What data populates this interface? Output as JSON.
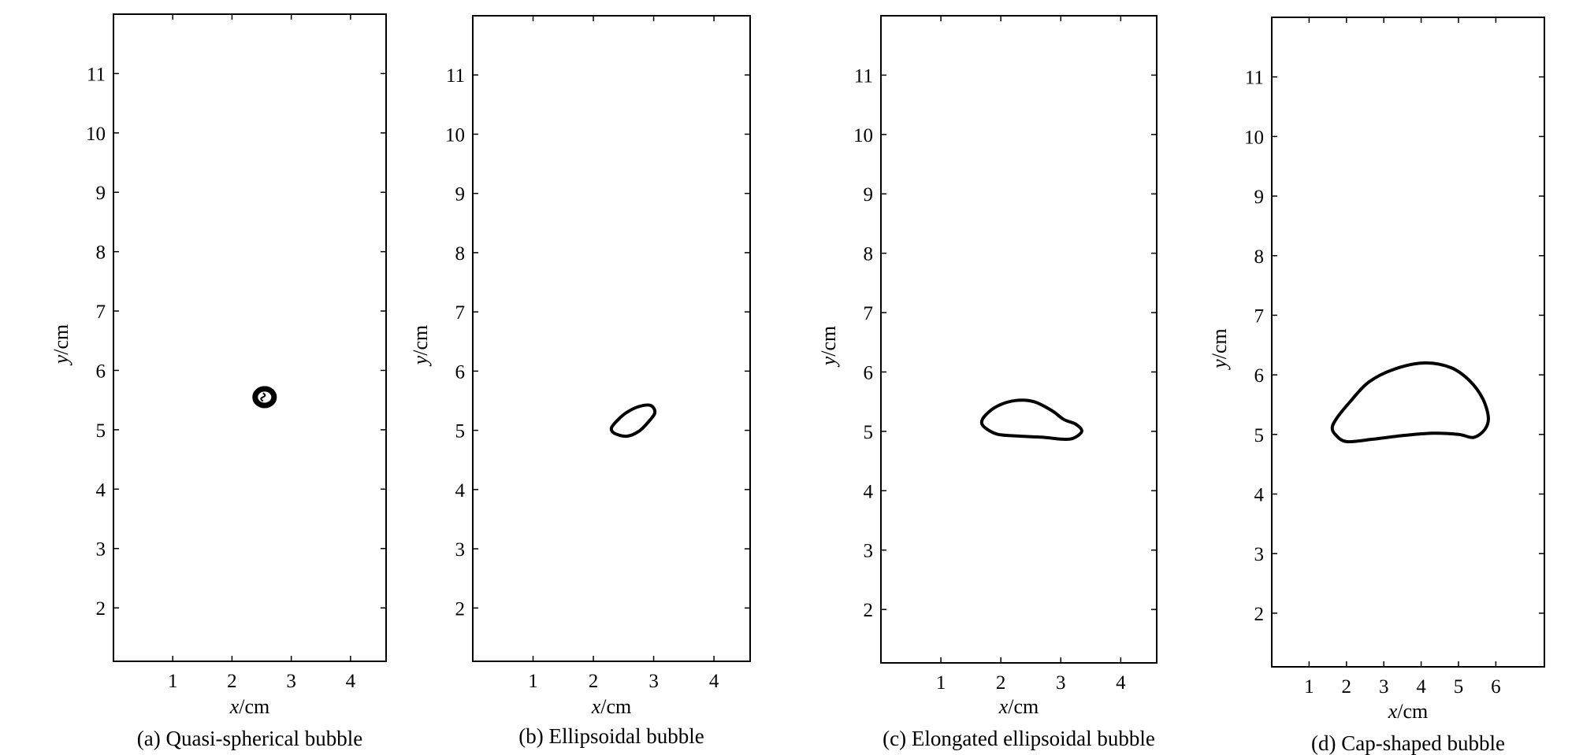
{
  "chart_data": [
    {
      "type": "scatter",
      "caption": "(a) Quasi-spherical bubble",
      "xlabel": "x/cm",
      "ylabel": "y/cm",
      "xlim": [
        0,
        4.6
      ],
      "ylim": [
        1.1,
        12
      ],
      "xticks": [
        1,
        2,
        3,
        4
      ],
      "yticks": [
        2,
        3,
        4,
        5,
        6,
        7,
        8,
        9,
        10,
        11
      ],
      "grid": false,
      "bubble": {
        "shape": "circle",
        "center_x": 2.55,
        "center_y": 5.55,
        "radius_x": 0.16,
        "radius_y": 0.14
      }
    },
    {
      "type": "scatter",
      "caption": "(b) Ellipsoidal bubble",
      "xlabel": "x/cm",
      "ylabel": "y/cm",
      "xlim": [
        0,
        4.6
      ],
      "ylim": [
        1.1,
        12
      ],
      "xticks": [
        1,
        2,
        3,
        4
      ],
      "yticks": [
        2,
        3,
        4,
        5,
        6,
        7,
        8,
        9,
        10,
        11
      ],
      "grid": false,
      "bubble": {
        "shape": "ellipsoidal",
        "outline": [
          [
            2.35,
            4.95
          ],
          [
            2.55,
            4.9
          ],
          [
            2.75,
            4.98
          ],
          [
            2.92,
            5.15
          ],
          [
            3.02,
            5.3
          ],
          [
            2.95,
            5.42
          ],
          [
            2.75,
            5.4
          ],
          [
            2.55,
            5.3
          ],
          [
            2.4,
            5.17
          ],
          [
            2.3,
            5.04
          ]
        ]
      }
    },
    {
      "type": "scatter",
      "caption": "(c) Elongated ellipsoidal bubble",
      "xlabel": "x/cm",
      "ylabel": "y/cm",
      "xlim": [
        0,
        4.6
      ],
      "ylim": [
        1.1,
        12
      ],
      "xticks": [
        1,
        2,
        3,
        4
      ],
      "yticks": [
        2,
        3,
        4,
        5,
        6,
        7,
        8,
        9,
        10,
        11
      ],
      "grid": false,
      "bubble": {
        "shape": "elongated-ellipsoidal",
        "outline": [
          [
            1.75,
            5.05
          ],
          [
            1.95,
            4.95
          ],
          [
            2.3,
            4.92
          ],
          [
            2.7,
            4.9
          ],
          [
            3.0,
            4.87
          ],
          [
            3.2,
            4.88
          ],
          [
            3.35,
            5.0
          ],
          [
            3.25,
            5.12
          ],
          [
            3.05,
            5.2
          ],
          [
            2.85,
            5.35
          ],
          [
            2.55,
            5.5
          ],
          [
            2.25,
            5.52
          ],
          [
            1.95,
            5.43
          ],
          [
            1.75,
            5.28
          ],
          [
            1.68,
            5.15
          ]
        ]
      }
    },
    {
      "type": "scatter",
      "caption": "(d) Cap-shaped bubble",
      "xlabel": "x/cm",
      "ylabel": "y/cm",
      "xlim": [
        0,
        7.3
      ],
      "ylim": [
        1.1,
        12
      ],
      "xticks": [
        1,
        2,
        3,
        4,
        5,
        6
      ],
      "yticks": [
        2,
        3,
        4,
        5,
        6,
        7,
        8,
        9,
        10,
        11
      ],
      "grid": false,
      "bubble": {
        "shape": "cap",
        "outline": [
          [
            1.7,
            5.0
          ],
          [
            2.0,
            4.88
          ],
          [
            2.7,
            4.92
          ],
          [
            3.5,
            4.98
          ],
          [
            4.3,
            5.02
          ],
          [
            5.0,
            5.0
          ],
          [
            5.4,
            4.95
          ],
          [
            5.7,
            5.08
          ],
          [
            5.8,
            5.28
          ],
          [
            5.65,
            5.6
          ],
          [
            5.3,
            5.9
          ],
          [
            4.8,
            6.12
          ],
          [
            4.1,
            6.2
          ],
          [
            3.3,
            6.1
          ],
          [
            2.6,
            5.88
          ],
          [
            2.1,
            5.55
          ],
          [
            1.75,
            5.28
          ],
          [
            1.62,
            5.12
          ]
        ]
      }
    }
  ]
}
